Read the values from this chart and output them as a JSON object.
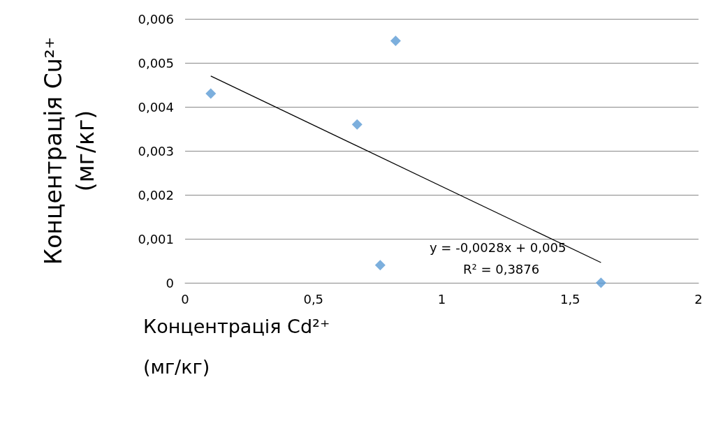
{
  "chart_data": {
    "type": "scatter",
    "xlabel": "Концентрація Cd²⁺ (мг/кг)",
    "ylabel": "Концентрація Cu²⁺ (мг/кг)",
    "xlim": [
      0,
      2
    ],
    "xticks": [
      0,
      {
        "value": 0.5,
        "label": "0,5"
      },
      1,
      {
        "value": 1.5,
        "label": "1,5"
      },
      2
    ],
    "ylim": [
      0,
      0.006
    ],
    "yticks": [
      0,
      {
        "value": 0.001,
        "label": "0,001"
      },
      {
        "value": 0.002,
        "label": "0,002"
      },
      {
        "value": 0.003,
        "label": "0,003"
      },
      {
        "value": 0.004,
        "label": "0,004"
      },
      {
        "value": 0.005,
        "label": "0,005"
      },
      {
        "value": 0.006,
        "label": "0,006"
      }
    ],
    "grid": "y",
    "series": [
      {
        "color": "#5b9bd5",
        "marker": "diamond",
        "x": [
          0.1,
          0.82,
          0.67,
          0.76,
          1.62
        ],
        "values": [
          0.0043,
          0.0055,
          0.0036,
          0.0004,
          0
        ]
      },
      {
        "type": "line",
        "color": "#000000",
        "marker": "none",
        "line_style": "solid",
        "x": [
          0.1,
          1.62
        ],
        "values": [
          0.0047,
          0.00046
        ]
      }
    ],
    "annotations": [
      "y = -0,0028x + 0,005",
      "R² = 0,3876"
    ]
  }
}
